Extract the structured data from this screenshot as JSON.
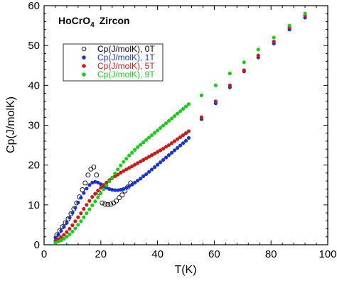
{
  "chart_data": {
    "type": "scatter",
    "title": "HoCrO4  Zircon",
    "title_parts": {
      "main": "HoCrO",
      "subscript": "4",
      "suffix": "Zircon"
    },
    "xlabel": "T(K)",
    "ylabel": "Cp(J/molK)",
    "xlim": [
      0,
      100
    ],
    "ylim": [
      0,
      60
    ],
    "xticks": [
      0,
      20,
      40,
      60,
      80,
      100
    ],
    "yticks": [
      0,
      10,
      20,
      30,
      40,
      50,
      60
    ],
    "grid": false,
    "legend_position": "upper-left",
    "series": [
      {
        "name": "Cp(J/molK), 0T",
        "color": "#000000",
        "marker": "open-circle",
        "x": [
          4.5,
          5.5,
          6.5,
          7.5,
          8.5,
          9.5,
          10.5,
          11.5,
          12.5,
          13.5,
          14.5,
          15.5,
          16.5,
          17.5,
          18.5,
          19.5,
          20.5,
          21.5,
          22.5,
          23.5,
          24.5,
          25.5,
          26.5,
          27.5,
          28.5,
          29.5,
          30.5
        ],
        "y": [
          2.5,
          3.5,
          4.5,
          5.5,
          6.5,
          7.8,
          9.0,
          10.5,
          12.0,
          13.8,
          15.5,
          17.5,
          19.0,
          19.5,
          17.5,
          13.0,
          10.5,
          10.2,
          10.1,
          10.2,
          10.5,
          11.0,
          11.8,
          12.5,
          13.5,
          14.5,
          15.5
        ]
      },
      {
        "name": "Cp(J/molK), 1T",
        "color": "#1a33cc",
        "marker": "filled-circle",
        "x": [
          4,
          5,
          6,
          7,
          8,
          9,
          10,
          11,
          12,
          13,
          14,
          15,
          16,
          17,
          18,
          19,
          20,
          21,
          22,
          23,
          24,
          25,
          26,
          27,
          28,
          29,
          30,
          31,
          32,
          33,
          34,
          35,
          36,
          37,
          38,
          39,
          40,
          41,
          42,
          43,
          44,
          45,
          46,
          47,
          48,
          49,
          50,
          51,
          55.5,
          60.5,
          65.5,
          70.5,
          75.5,
          81,
          86.5,
          92
        ],
        "y": [
          1.8,
          2.5,
          3.5,
          4.5,
          5.5,
          6.8,
          8.0,
          9.3,
          10.6,
          11.8,
          13.0,
          14.1,
          15.0,
          15.6,
          15.8,
          15.6,
          15.2,
          14.7,
          14.3,
          14.0,
          13.8,
          13.7,
          13.7,
          13.8,
          14.0,
          14.3,
          14.7,
          15.1,
          15.6,
          16.1,
          16.6,
          17.2,
          17.7,
          18.3,
          18.9,
          19.5,
          20.1,
          20.7,
          21.3,
          21.9,
          22.5,
          23.1,
          23.7,
          24.3,
          24.9,
          25.5,
          26.1,
          26.8,
          31.5,
          35.5,
          39.5,
          43.5,
          47.0,
          50.5,
          54.0,
          57.0
        ]
      },
      {
        "name": "Cp(J/molK), 5T",
        "color": "#cc1a1a",
        "marker": "filled-circle",
        "x": [
          4,
          5,
          6,
          7,
          8,
          9,
          10,
          11,
          12,
          13,
          14,
          15,
          16,
          17,
          18,
          19,
          20,
          21,
          22,
          23,
          24,
          25,
          26,
          27,
          28,
          29,
          30,
          31,
          32,
          33,
          34,
          35,
          36,
          37,
          38,
          39,
          40,
          41,
          42,
          43,
          44,
          45,
          46,
          47,
          48,
          49,
          50,
          51,
          55.5,
          60.5,
          65.5,
          70.5,
          75.5,
          81,
          86.5,
          92
        ],
        "y": [
          1.0,
          1.4,
          1.9,
          2.5,
          3.2,
          4.0,
          4.9,
          5.9,
          6.9,
          7.9,
          9.0,
          10.0,
          11.0,
          12.0,
          12.8,
          13.6,
          14.3,
          15.0,
          15.6,
          16.2,
          16.7,
          17.2,
          17.6,
          18.1,
          18.5,
          18.9,
          19.3,
          19.7,
          20.1,
          20.5,
          20.9,
          21.3,
          21.7,
          22.1,
          22.5,
          22.9,
          23.3,
          23.7,
          24.1,
          24.6,
          25.0,
          25.5,
          26.0,
          26.5,
          27.0,
          27.5,
          28.0,
          28.5,
          32.0,
          36.0,
          40.0,
          43.8,
          47.5,
          51.0,
          54.5,
          57.5
        ]
      },
      {
        "name": "Cp(J/molK), 9T",
        "color": "#1acc1a",
        "marker": "filled-circle",
        "x": [
          4,
          5,
          6,
          7,
          8,
          9,
          10,
          11,
          12,
          13,
          14,
          15,
          16,
          17,
          18,
          19,
          20,
          21,
          22,
          23,
          24,
          25,
          26,
          27,
          28,
          29,
          30,
          31,
          32,
          33,
          34,
          35,
          36,
          37,
          38,
          39,
          40,
          41,
          42,
          43,
          44,
          45,
          46,
          47,
          48,
          49,
          50,
          51,
          55.5,
          60.5,
          65.5,
          70.5,
          75.5,
          81,
          86.5,
          92
        ],
        "y": [
          0.5,
          0.8,
          1.1,
          1.5,
          2.0,
          2.6,
          3.3,
          4.1,
          5.0,
          5.9,
          6.9,
          7.9,
          8.9,
          9.9,
          10.9,
          11.9,
          12.9,
          13.9,
          14.9,
          15.9,
          16.9,
          17.9,
          18.9,
          19.9,
          20.8,
          21.6,
          22.4,
          23.1,
          23.8,
          24.5,
          25.1,
          25.7,
          26.3,
          26.9,
          27.5,
          28.1,
          28.7,
          29.3,
          29.9,
          30.5,
          31.1,
          31.7,
          32.3,
          32.9,
          33.5,
          34.1,
          34.7,
          35.3,
          37.5,
          40.0,
          43.0,
          45.8,
          49.0,
          52.0,
          55.0,
          58.0
        ]
      }
    ]
  }
}
